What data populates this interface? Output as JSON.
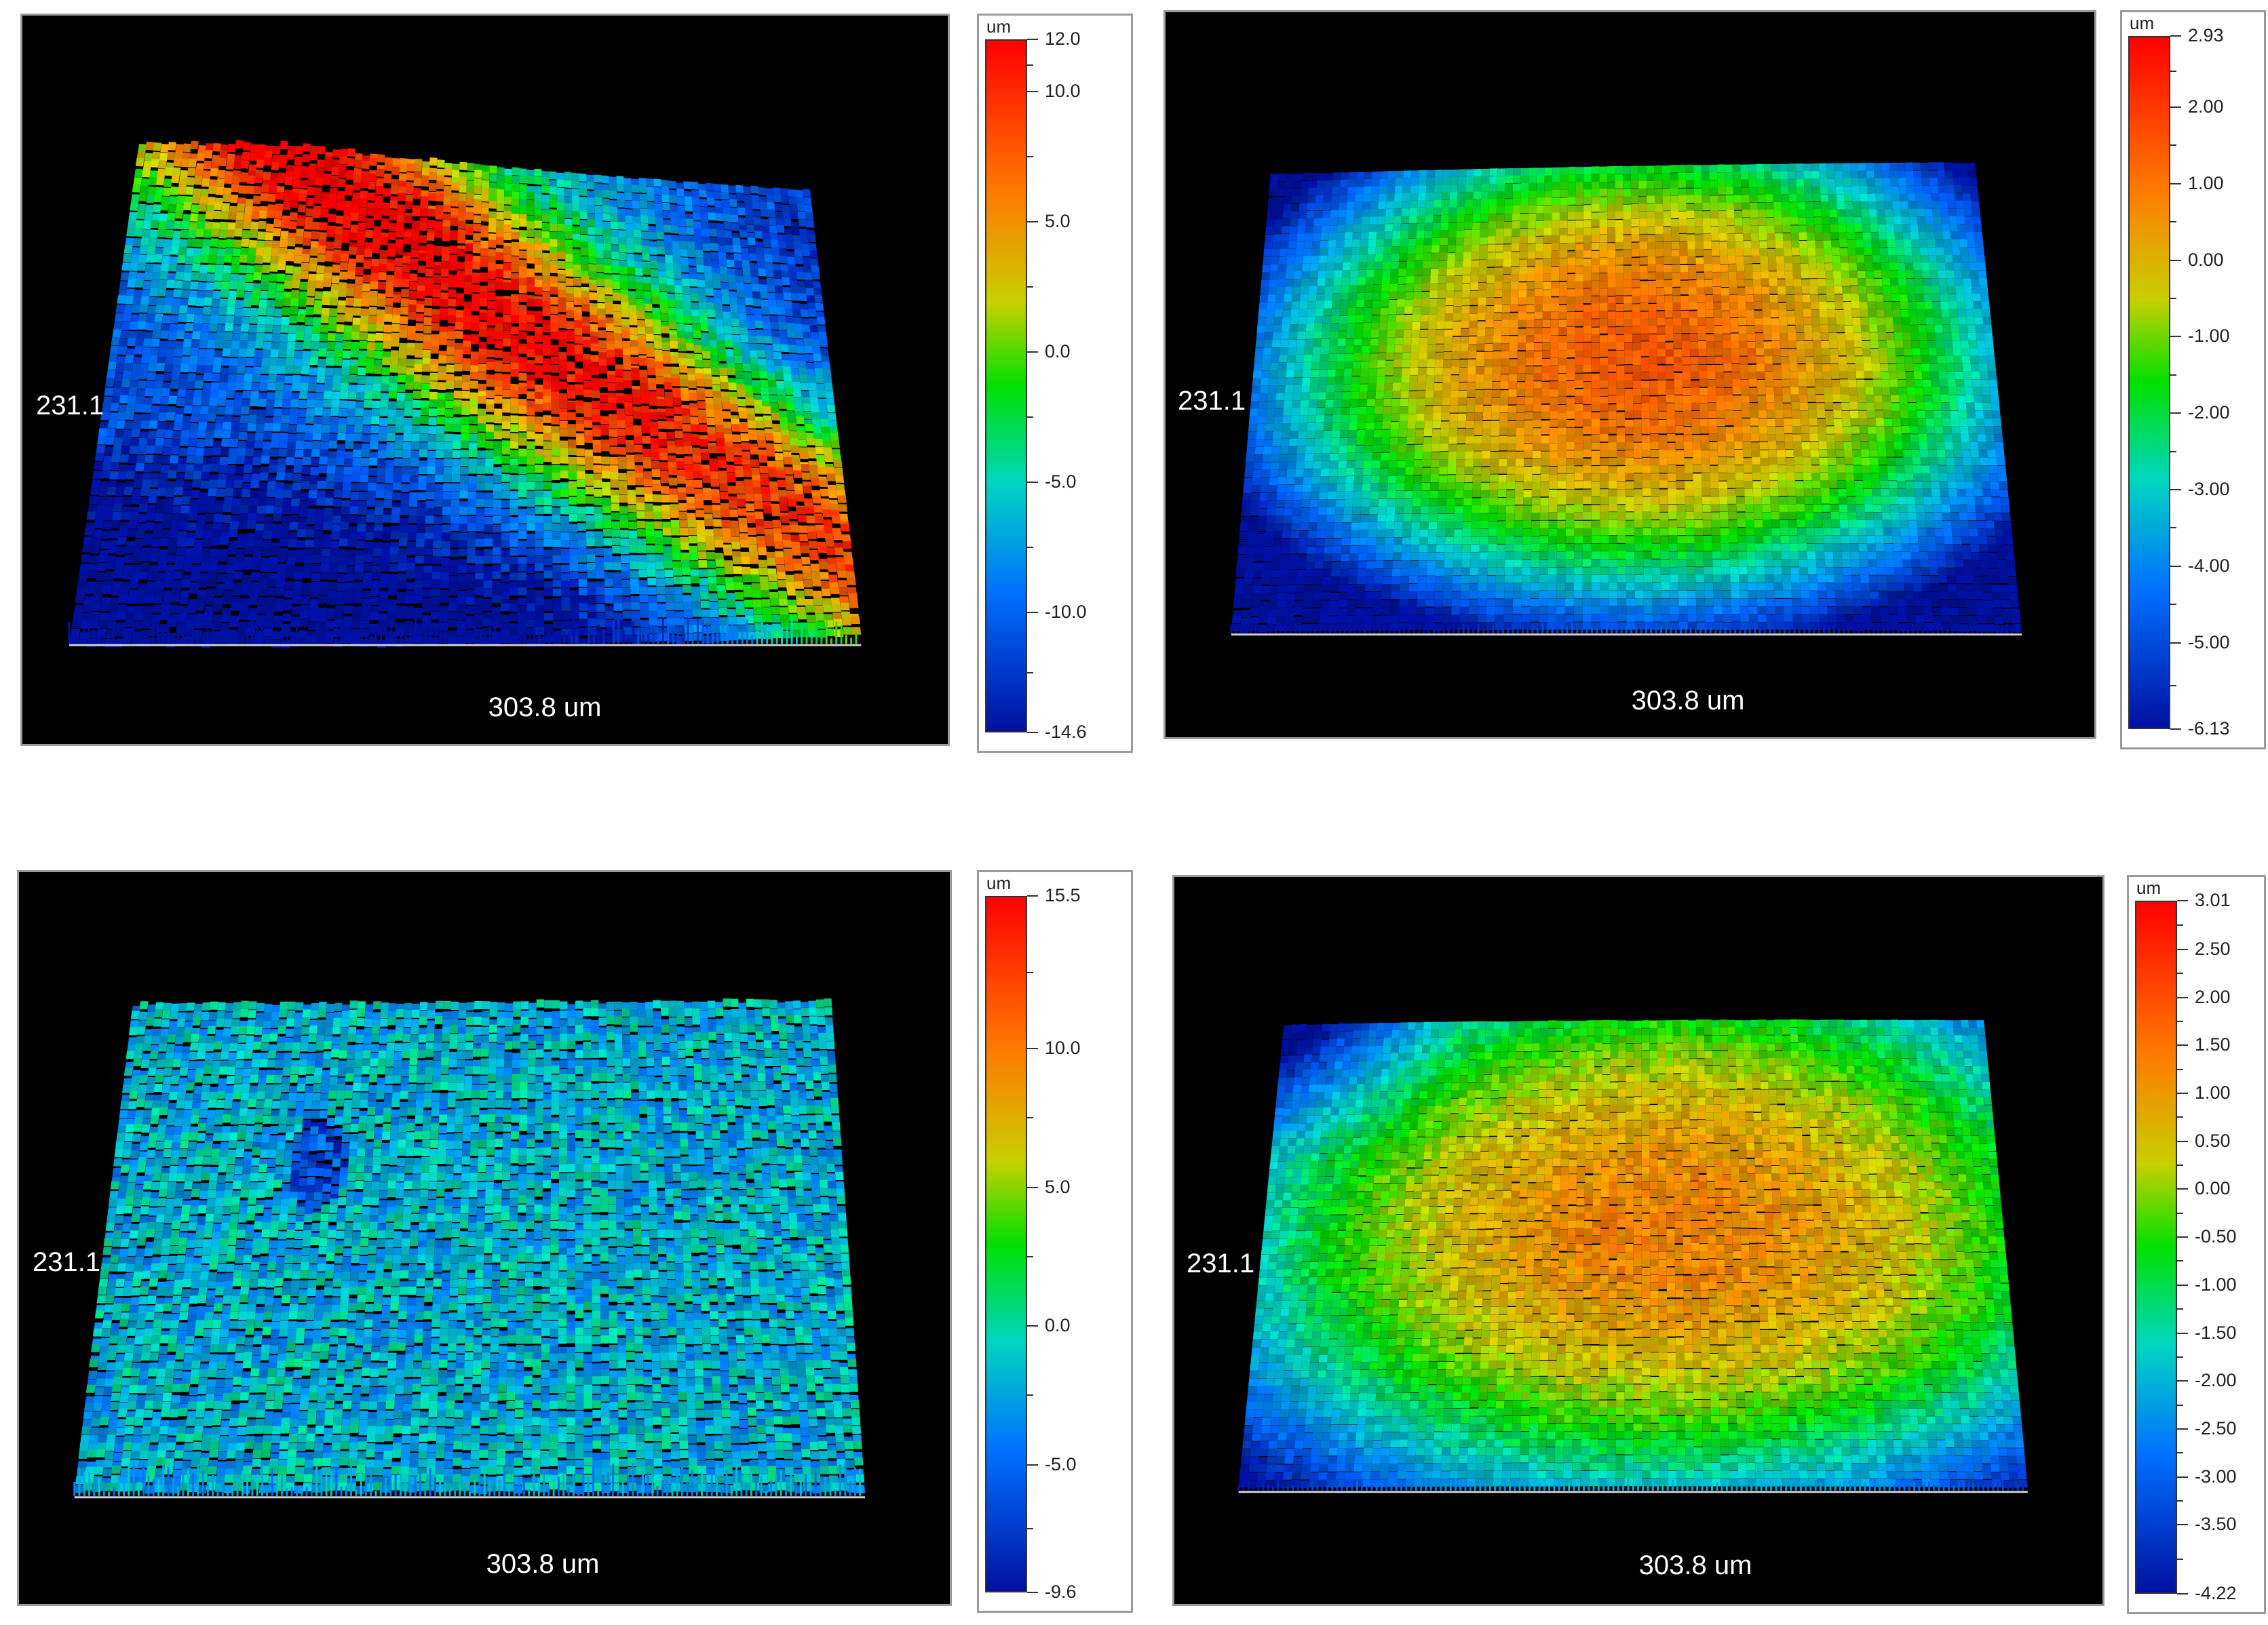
{
  "panels": [
    {
      "y_label": "231.1",
      "x_label": "303.8 um",
      "unit": "um",
      "surface": "diagonal-ridge",
      "scale_max": 12.0,
      "scale_min": -14.6,
      "scale_labels": [
        "12.0",
        "10.0",
        "5.0",
        "0.0",
        "-5.0",
        "-10.0",
        "-14.6"
      ],
      "scale_values": [
        12.0,
        10.0,
        5.0,
        0.0,
        -5.0,
        -10.0,
        -14.6
      ]
    },
    {
      "y_label": "231.1",
      "x_label": "303.8 um",
      "unit": "um",
      "surface": "central-dome",
      "scale_max": 2.93,
      "scale_min": -6.13,
      "scale_labels": [
        "2.93",
        "2.00",
        "1.00",
        "0.00",
        "-1.00",
        "-2.00",
        "-3.00",
        "-4.00",
        "-5.00",
        "-6.13"
      ],
      "scale_values": [
        2.93,
        2.0,
        1.0,
        0.0,
        -1.0,
        -2.0,
        -3.0,
        -4.0,
        -5.0,
        -6.13
      ]
    },
    {
      "y_label": "231.1",
      "x_label": "303.8 um",
      "unit": "um",
      "surface": "rough-uniform",
      "scale_max": 15.5,
      "scale_min": -9.6,
      "scale_labels": [
        "15.5",
        "10.0",
        "5.0",
        "0.0",
        "-5.0",
        "-9.6"
      ],
      "scale_values": [
        15.5,
        10.0,
        5.0,
        0.0,
        -5.0,
        -9.6
      ]
    },
    {
      "y_label": "231.1",
      "x_label": "303.8 um",
      "unit": "um",
      "surface": "scratched-dome",
      "scale_max": 3.01,
      "scale_min": -4.22,
      "scale_labels": [
        "3.01",
        "2.50",
        "2.00",
        "1.50",
        "1.00",
        "0.50",
        "0.00",
        "-0.50",
        "-1.00",
        "-1.50",
        "-2.00",
        "-2.50",
        "-3.00",
        "-3.50",
        "-4.22"
      ],
      "scale_values": [
        3.01,
        2.5,
        2.0,
        1.5,
        1.0,
        0.5,
        0.0,
        -0.5,
        -1.0,
        -1.5,
        -2.0,
        -2.5,
        -3.0,
        -3.5,
        -4.22
      ]
    }
  ],
  "colors": {
    "background": "#000000",
    "frame": "#9a9a9a",
    "label_text": "#ffffff",
    "scale_high": "#ff0000",
    "scale_mid": "#00e000",
    "scale_low": "#0010a0"
  }
}
